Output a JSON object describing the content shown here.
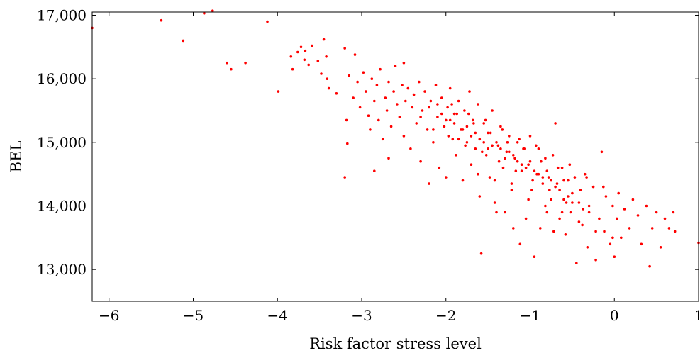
{
  "chart_data": {
    "type": "scatter",
    "title": "",
    "xlabel": "Risk factor stress level",
    "ylabel": "BEL",
    "xlim": [
      -6.2,
      1.0
    ],
    "ylim": [
      12500,
      17050
    ],
    "xticks": [
      -6,
      -5,
      -4,
      -3,
      -2,
      -1,
      0,
      1
    ],
    "xtick_labels": [
      "−6",
      "−5",
      "−4",
      "−3",
      "−2",
      "−1",
      "0",
      "1"
    ],
    "yticks": [
      13000,
      14000,
      15000,
      16000,
      17000
    ],
    "ytick_labels": [
      "13,000",
      "14,000",
      "15,000",
      "16,000",
      "17,000"
    ],
    "grid": false,
    "legend": "none",
    "marker_color": "#ff0000",
    "series": [
      {
        "points": [
          [
            -6.2,
            16800
          ],
          [
            -5.38,
            16920
          ],
          [
            -5.12,
            16600
          ],
          [
            -4.87,
            17030
          ],
          [
            -4.77,
            17070
          ],
          [
            -4.6,
            16250
          ],
          [
            -4.55,
            16150
          ],
          [
            -4.38,
            16250
          ],
          [
            -4.12,
            16900
          ],
          [
            -3.99,
            15800
          ],
          [
            -3.84,
            16350
          ],
          [
            -3.82,
            16150
          ],
          [
            -3.76,
            16420
          ],
          [
            -3.72,
            16500
          ],
          [
            -3.68,
            16300
          ],
          [
            -3.67,
            16440
          ],
          [
            -3.63,
            16220
          ],
          [
            -3.59,
            16520
          ],
          [
            -3.52,
            16280
          ],
          [
            -3.48,
            16080
          ],
          [
            -3.45,
            16620
          ],
          [
            -3.42,
            16350
          ],
          [
            -3.41,
            16000
          ],
          [
            -3.39,
            15850
          ],
          [
            -3.3,
            15770
          ],
          [
            -3.2,
            16480
          ],
          [
            -3.18,
            15350
          ],
          [
            -3.17,
            14980
          ],
          [
            -3.2,
            14450
          ],
          [
            -3.08,
            16380
          ],
          [
            -2.85,
            14550
          ],
          [
            -2.68,
            14750
          ],
          [
            -3.15,
            16050
          ],
          [
            -3.1,
            15700
          ],
          [
            -3.05,
            15950
          ],
          [
            -3.02,
            15550
          ],
          [
            -2.98,
            16100
          ],
          [
            -2.95,
            15800
          ],
          [
            -2.92,
            15420
          ],
          [
            -2.9,
            15200
          ],
          [
            -2.88,
            16000
          ],
          [
            -2.85,
            15650
          ],
          [
            -2.82,
            15900
          ],
          [
            -2.8,
            15350
          ],
          [
            -2.78,
            16150
          ],
          [
            -2.75,
            15050
          ],
          [
            -2.72,
            15700
          ],
          [
            -2.7,
            15500
          ],
          [
            -2.68,
            15950
          ],
          [
            -2.65,
            15250
          ],
          [
            -2.62,
            15800
          ],
          [
            -2.6,
            16200
          ],
          [
            -2.58,
            15600
          ],
          [
            -2.55,
            15400
          ],
          [
            -2.52,
            15900
          ],
          [
            -2.5,
            16250
          ],
          [
            -2.5,
            15100
          ],
          [
            -2.48,
            15650
          ],
          [
            -2.45,
            15850
          ],
          [
            -2.42,
            14900
          ],
          [
            -2.4,
            15550
          ],
          [
            -2.38,
            15750
          ],
          [
            -2.35,
            15300
          ],
          [
            -2.32,
            15950
          ],
          [
            -2.3,
            14700
          ],
          [
            -2.28,
            15500
          ],
          [
            -2.25,
            15800
          ],
          [
            -2.22,
            15200
          ],
          [
            -2.2,
            14350
          ],
          [
            -2.18,
            15650
          ],
          [
            -2.15,
            15000
          ],
          [
            -2.12,
            15900
          ],
          [
            -2.1,
            15400
          ],
          [
            -2.08,
            14600
          ],
          [
            -2.05,
            15700
          ],
          [
            -2.02,
            15250
          ],
          [
            -2.0,
            14450
          ],
          [
            -1.98,
            15550
          ],
          [
            -1.95,
            15850
          ],
          [
            -1.92,
            15050
          ],
          [
            -1.9,
            15450
          ],
          [
            -1.88,
            14800
          ],
          [
            -1.85,
            15650
          ],
          [
            -1.82,
            15200
          ],
          [
            -1.8,
            14400
          ],
          [
            -1.78,
            15500
          ],
          [
            -1.75,
            15000
          ],
          [
            -1.72,
            15800
          ],
          [
            -1.7,
            14650
          ],
          [
            -1.68,
            15350
          ],
          [
            -1.65,
            14900
          ],
          [
            -1.62,
            15600
          ],
          [
            -1.6,
            14150
          ],
          [
            -1.58,
            13250
          ],
          [
            -1.55,
            15300
          ],
          [
            -1.52,
            14800
          ],
          [
            -1.5,
            15150
          ],
          [
            -1.48,
            14450
          ],
          [
            -1.45,
            15500
          ],
          [
            -1.42,
            14050
          ],
          [
            -1.4,
            13900
          ],
          [
            -1.38,
            14950
          ],
          [
            -1.35,
            15250
          ],
          [
            -1.32,
            14600
          ],
          [
            -1.3,
            13900
          ],
          [
            -1.28,
            14850
          ],
          [
            -1.25,
            15100
          ],
          [
            -1.22,
            14350
          ],
          [
            -1.2,
            13650
          ],
          [
            -1.18,
            14750
          ],
          [
            -1.15,
            15000
          ],
          [
            -1.12,
            13400
          ],
          [
            -1.1,
            14550
          ],
          [
            -1.08,
            14900
          ],
          [
            -1.05,
            13800
          ],
          [
            -1.02,
            14650
          ],
          [
            -1.0,
            15100
          ],
          [
            -0.98,
            14250
          ],
          [
            -0.95,
            13200
          ],
          [
            -0.92,
            14500
          ],
          [
            -0.9,
            14900
          ],
          [
            -0.88,
            13650
          ],
          [
            -0.85,
            14350
          ],
          [
            -0.82,
            14750
          ],
          [
            -0.8,
            13900
          ],
          [
            -0.78,
            14450
          ],
          [
            -0.75,
            14100
          ],
          [
            -0.72,
            13600
          ],
          [
            -0.7,
            15300
          ],
          [
            -0.68,
            14350
          ],
          [
            -0.65,
            13800
          ],
          [
            -0.62,
            14600
          ],
          [
            -0.6,
            14100
          ],
          [
            -0.58,
            13550
          ],
          [
            -0.55,
            14400
          ],
          [
            -0.52,
            13900
          ],
          [
            -0.5,
            14200
          ],
          [
            -0.45,
            13100
          ],
          [
            -0.42,
            14050
          ],
          [
            -0.38,
            13700
          ],
          [
            -0.35,
            14500
          ],
          [
            -0.32,
            13350
          ],
          [
            -0.3,
            13900
          ],
          [
            -0.25,
            14300
          ],
          [
            -0.22,
            13150
          ],
          [
            -0.18,
            13800
          ],
          [
            -0.15,
            14850
          ],
          [
            -0.12,
            13600
          ],
          [
            -0.1,
            14150
          ],
          [
            -0.05,
            13400
          ],
          [
            -0.02,
            14000
          ],
          [
            0.0,
            13200
          ],
          [
            0.03,
            13800
          ],
          [
            0.05,
            14200
          ],
          [
            0.08,
            13500
          ],
          [
            0.12,
            13950
          ],
          [
            0.18,
            13650
          ],
          [
            0.22,
            14100
          ],
          [
            0.28,
            13850
          ],
          [
            0.32,
            13400
          ],
          [
            0.38,
            14000
          ],
          [
            0.42,
            13050
          ],
          [
            0.45,
            13650
          ],
          [
            0.5,
            13900
          ],
          [
            0.55,
            13350
          ],
          [
            0.6,
            13800
          ],
          [
            0.65,
            13650
          ],
          [
            0.7,
            13900
          ],
          [
            0.72,
            13600
          ],
          [
            1.0,
            13420
          ],
          [
            -1.95,
            15350
          ],
          [
            -1.85,
            15050
          ],
          [
            -1.75,
            15250
          ],
          [
            -1.65,
            15150
          ],
          [
            -1.55,
            15000
          ],
          [
            -1.45,
            14950
          ],
          [
            -1.35,
            14900
          ],
          [
            -1.25,
            14850
          ],
          [
            -1.15,
            14700
          ],
          [
            -1.05,
            14600
          ],
          [
            -0.95,
            14550
          ],
          [
            -0.85,
            14450
          ],
          [
            -0.75,
            14400
          ],
          [
            -0.65,
            14250
          ],
          [
            -0.55,
            14150
          ],
          [
            -2.05,
            15450
          ],
          [
            -1.9,
            15300
          ],
          [
            -1.7,
            15100
          ],
          [
            -1.5,
            14900
          ],
          [
            -1.3,
            14750
          ],
          [
            -1.1,
            14650
          ],
          [
            -0.9,
            14500
          ],
          [
            -0.7,
            14300
          ],
          [
            -0.5,
            14050
          ],
          [
            -0.3,
            14000
          ],
          [
            -2.2,
            15550
          ],
          [
            -2.0,
            15350
          ],
          [
            -1.8,
            15200
          ],
          [
            -1.6,
            15050
          ],
          [
            -1.4,
            15000
          ],
          [
            -1.2,
            14800
          ],
          [
            -1.0,
            14700
          ],
          [
            -0.8,
            14550
          ],
          [
            -0.6,
            14400
          ],
          [
            -0.4,
            14250
          ],
          [
            -2.15,
            15200
          ],
          [
            -1.97,
            15100
          ],
          [
            -1.77,
            14950
          ],
          [
            -1.57,
            14850
          ],
          [
            -1.37,
            14700
          ],
          [
            -1.17,
            14550
          ],
          [
            -0.97,
            14400
          ],
          [
            -0.77,
            14250
          ],
          [
            -0.57,
            14050
          ],
          [
            -0.37,
            13950
          ],
          [
            -1.93,
            15600
          ],
          [
            -1.73,
            15450
          ],
          [
            -1.53,
            15350
          ],
          [
            -1.33,
            15200
          ],
          [
            -1.13,
            15050
          ],
          [
            -0.93,
            14950
          ],
          [
            -0.73,
            14800
          ],
          [
            -0.53,
            14650
          ],
          [
            -0.33,
            14450
          ],
          [
            -0.13,
            14300
          ],
          [
            -2.3,
            15400
          ],
          [
            -2.1,
            15600
          ],
          [
            -1.87,
            15450
          ],
          [
            -1.67,
            15300
          ],
          [
            -1.47,
            15150
          ],
          [
            -1.27,
            15000
          ],
          [
            -1.07,
            14900
          ],
          [
            -0.87,
            14700
          ],
          [
            -0.67,
            14600
          ],
          [
            -0.47,
            14450
          ],
          [
            -1.62,
            14500
          ],
          [
            -1.42,
            14400
          ],
          [
            -1.22,
            14250
          ],
          [
            -1.02,
            14100
          ],
          [
            -0.82,
            14000
          ],
          [
            -0.62,
            13900
          ],
          [
            -0.42,
            13750
          ],
          [
            -0.22,
            13600
          ],
          [
            -0.02,
            13500
          ]
        ]
      }
    ]
  }
}
